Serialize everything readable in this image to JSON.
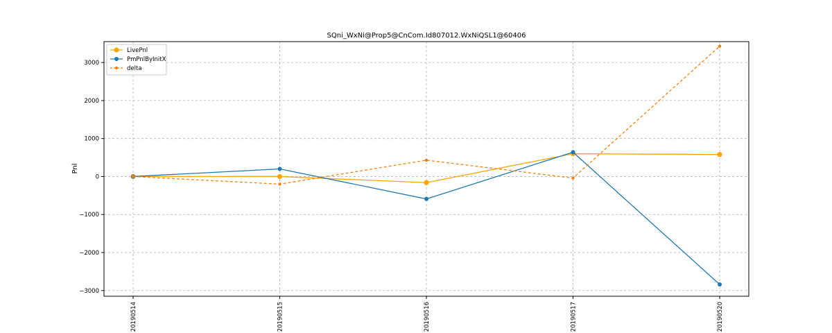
{
  "chart_data": {
    "type": "line",
    "title": "SQni_WxNi@Prop5@CnCom.Id807012.WxNiQSL1@60406",
    "xlabel": "",
    "ylabel": "Pnl",
    "categories": [
      "20190514",
      "20190515",
      "20190516",
      "20190517",
      "20190520"
    ],
    "ylim": [
      -3150,
      3550
    ],
    "yticks": [
      -3000,
      -2000,
      -1000,
      0,
      1000,
      2000,
      3000
    ],
    "ytick_labels": [
      "−3000",
      "−2000",
      "−1000",
      "0",
      "1000",
      "2000",
      "3000"
    ],
    "grid": true,
    "legend_position": "top-left",
    "series": [
      {
        "name": "LivePnl",
        "values": [
          0,
          0,
          -160,
          600,
          580
        ],
        "color": "#ffa500",
        "style": "solid",
        "marker": "large-circle"
      },
      {
        "name": "PmPnlByInitX",
        "values": [
          0,
          200,
          -590,
          640,
          -2840
        ],
        "color": "#1f77b4",
        "style": "solid",
        "marker": "circle"
      },
      {
        "name": "delta",
        "values": [
          0,
          -200,
          430,
          -40,
          3430
        ],
        "color": "#ff7f0e",
        "style": "dashed",
        "marker": "small-circle"
      }
    ]
  }
}
